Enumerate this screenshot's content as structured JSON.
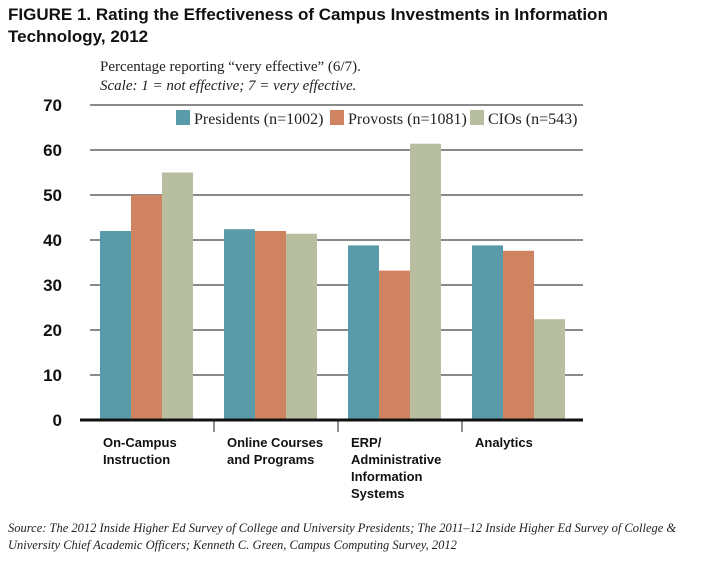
{
  "title": "FIGURE 1. Rating the Effectiveness of Campus Investments in Information Technology, 2012",
  "note_line1": "Percentage reporting “very effective” (6/7).",
  "note_line2": "Scale: 1 = not effective; 7 = very effective.",
  "source": "Source: The 2012 Inside Higher Ed Survey of College and University Presidents; The 2011–12 Inside Higher Ed Survey of College & University Chief Academic Officers; Kenneth C. Green, Campus Computing Survey, 2012",
  "chart_data": {
    "type": "bar",
    "categories": [
      [
        "On-Campus",
        "Instruction"
      ],
      [
        "Online Courses",
        "and Programs"
      ],
      [
        "ERP/",
        "Administrative",
        "Information",
        "Systems"
      ],
      [
        "Analytics"
      ]
    ],
    "series": [
      {
        "name": "Presidents (n=1002)",
        "color": "#5a9baa",
        "values": [
          42,
          42.4,
          38.8,
          38.8
        ]
      },
      {
        "name": "Provosts (n=1081)",
        "color": "#cf8360",
        "values": [
          50,
          42,
          33.2,
          37.6
        ]
      },
      {
        "name": "CIOs (n=543)",
        "color": "#b8bea0",
        "values": [
          55,
          41.4,
          61.4,
          22.4
        ]
      }
    ],
    "ylim": [
      0,
      70
    ],
    "yticks": [
      0,
      10,
      20,
      30,
      40,
      50,
      60,
      70
    ],
    "grid": true,
    "legend": "top-right"
  }
}
